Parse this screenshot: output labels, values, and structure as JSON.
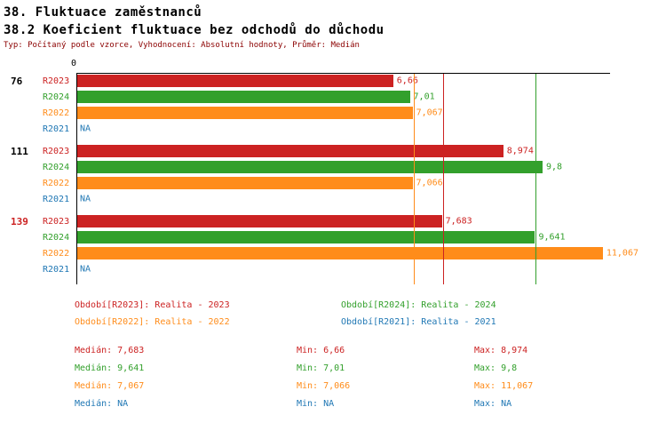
{
  "header": {
    "title": "38. Fluktuace zaměstnanců",
    "subtitle": "38.2 Koeficient fluktuace bez odchodů do důchodu",
    "meta": "Typ: Počítaný podle vzorce, Vyhodnocení: Absolutní hodnoty, Průměr: Medián"
  },
  "colors": {
    "red": "#CC2222",
    "green": "#33A02C",
    "orange": "#FF8C1A",
    "blue": "#1F77B4",
    "meta_text": "#8B0000",
    "axis": "#000000",
    "label_black": "#000000"
  },
  "chart_data": {
    "type": "bar",
    "orientation": "horizontal",
    "title": "38.2 Koeficient fluktuace bez odchodů do důchodu",
    "axis": {
      "min": 0,
      "max": 11.2,
      "origin_label": "0"
    },
    "series_colors": {
      "R2023": "red",
      "R2024": "green",
      "R2022": "orange",
      "R2021": "blue"
    },
    "groups": [
      {
        "label": "76",
        "label_color": "label_black",
        "bars": [
          {
            "series": "R2023",
            "value": 6.66,
            "label": "6,66"
          },
          {
            "series": "R2024",
            "value": 7.01,
            "label": "7,01"
          },
          {
            "series": "R2022",
            "value": 7.067,
            "label": "7,067"
          },
          {
            "series": "R2021",
            "value": null,
            "label": "NA"
          }
        ]
      },
      {
        "label": "111",
        "label_color": "label_black",
        "bars": [
          {
            "series": "R2023",
            "value": 8.974,
            "label": "8,974"
          },
          {
            "series": "R2024",
            "value": 9.8,
            "label": "9,8"
          },
          {
            "series": "R2022",
            "value": 7.066,
            "label": "7,066"
          },
          {
            "series": "R2021",
            "value": null,
            "label": "NA"
          }
        ]
      },
      {
        "label": "139",
        "label_color": "red",
        "bars": [
          {
            "series": "R2023",
            "value": 7.683,
            "label": "7,683"
          },
          {
            "series": "R2024",
            "value": 9.641,
            "label": "9,641"
          },
          {
            "series": "R2022",
            "value": 11.067,
            "label": "11,067"
          },
          {
            "series": "R2021",
            "value": null,
            "label": "NA"
          }
        ]
      }
    ],
    "median_lines": [
      {
        "value": 7.683,
        "color": "red"
      },
      {
        "value": 9.641,
        "color": "green"
      },
      {
        "value": 7.067,
        "color": "orange"
      }
    ]
  },
  "legend": [
    {
      "label": "Období[R2023]: Realita - 2023",
      "color": "red"
    },
    {
      "label": "Období[R2024]: Realita - 2024",
      "color": "green"
    },
    {
      "label": "Období[R2022]: Realita - 2022",
      "color": "orange"
    },
    {
      "label": "Období[R2021]: Realita - 2021",
      "color": "blue"
    }
  ],
  "stats": [
    {
      "color": "red",
      "median": "Medián: 7,683",
      "min": "Min: 6,66",
      "max": "Max: 8,974"
    },
    {
      "color": "green",
      "median": "Medián: 9,641",
      "min": "Min: 7,01",
      "max": "Max: 9,8"
    },
    {
      "color": "orange",
      "median": "Medián: 7,067",
      "min": "Min: 7,066",
      "max": "Max: 11,067"
    },
    {
      "color": "blue",
      "median": "Medián: NA",
      "min": "Min: NA",
      "max": "Max: NA"
    }
  ]
}
